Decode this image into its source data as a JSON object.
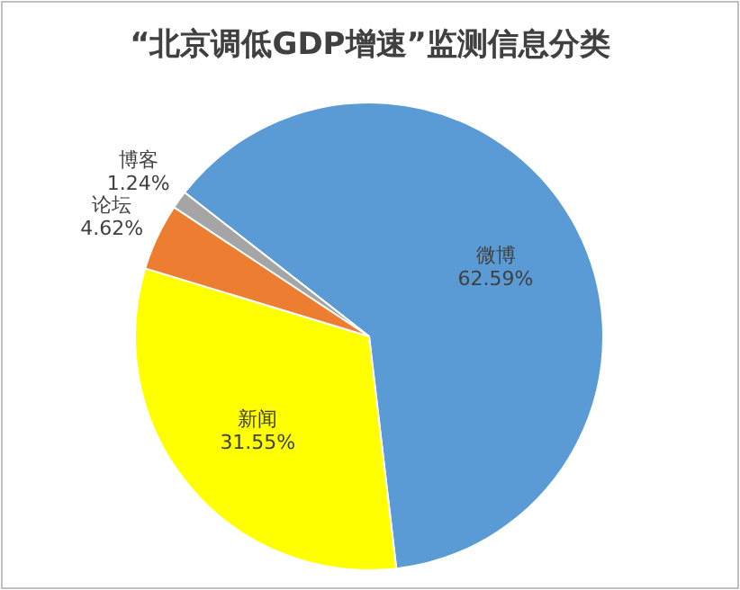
{
  "chart_data": {
    "type": "pie",
    "title": "“北京调低GDP增速”监测信息分类",
    "categories": [
      "微博",
      "新闻",
      "论坛",
      "博客"
    ],
    "values": [
      62.59,
      31.55,
      4.62,
      1.24
    ],
    "colors": [
      "#5b9bd5",
      "#ffff00",
      "#ed7d31",
      "#a5a5a5"
    ],
    "value_labels": [
      "62.59%",
      "31.55%",
      "4.62%",
      "1.24%"
    ],
    "legend": false
  }
}
